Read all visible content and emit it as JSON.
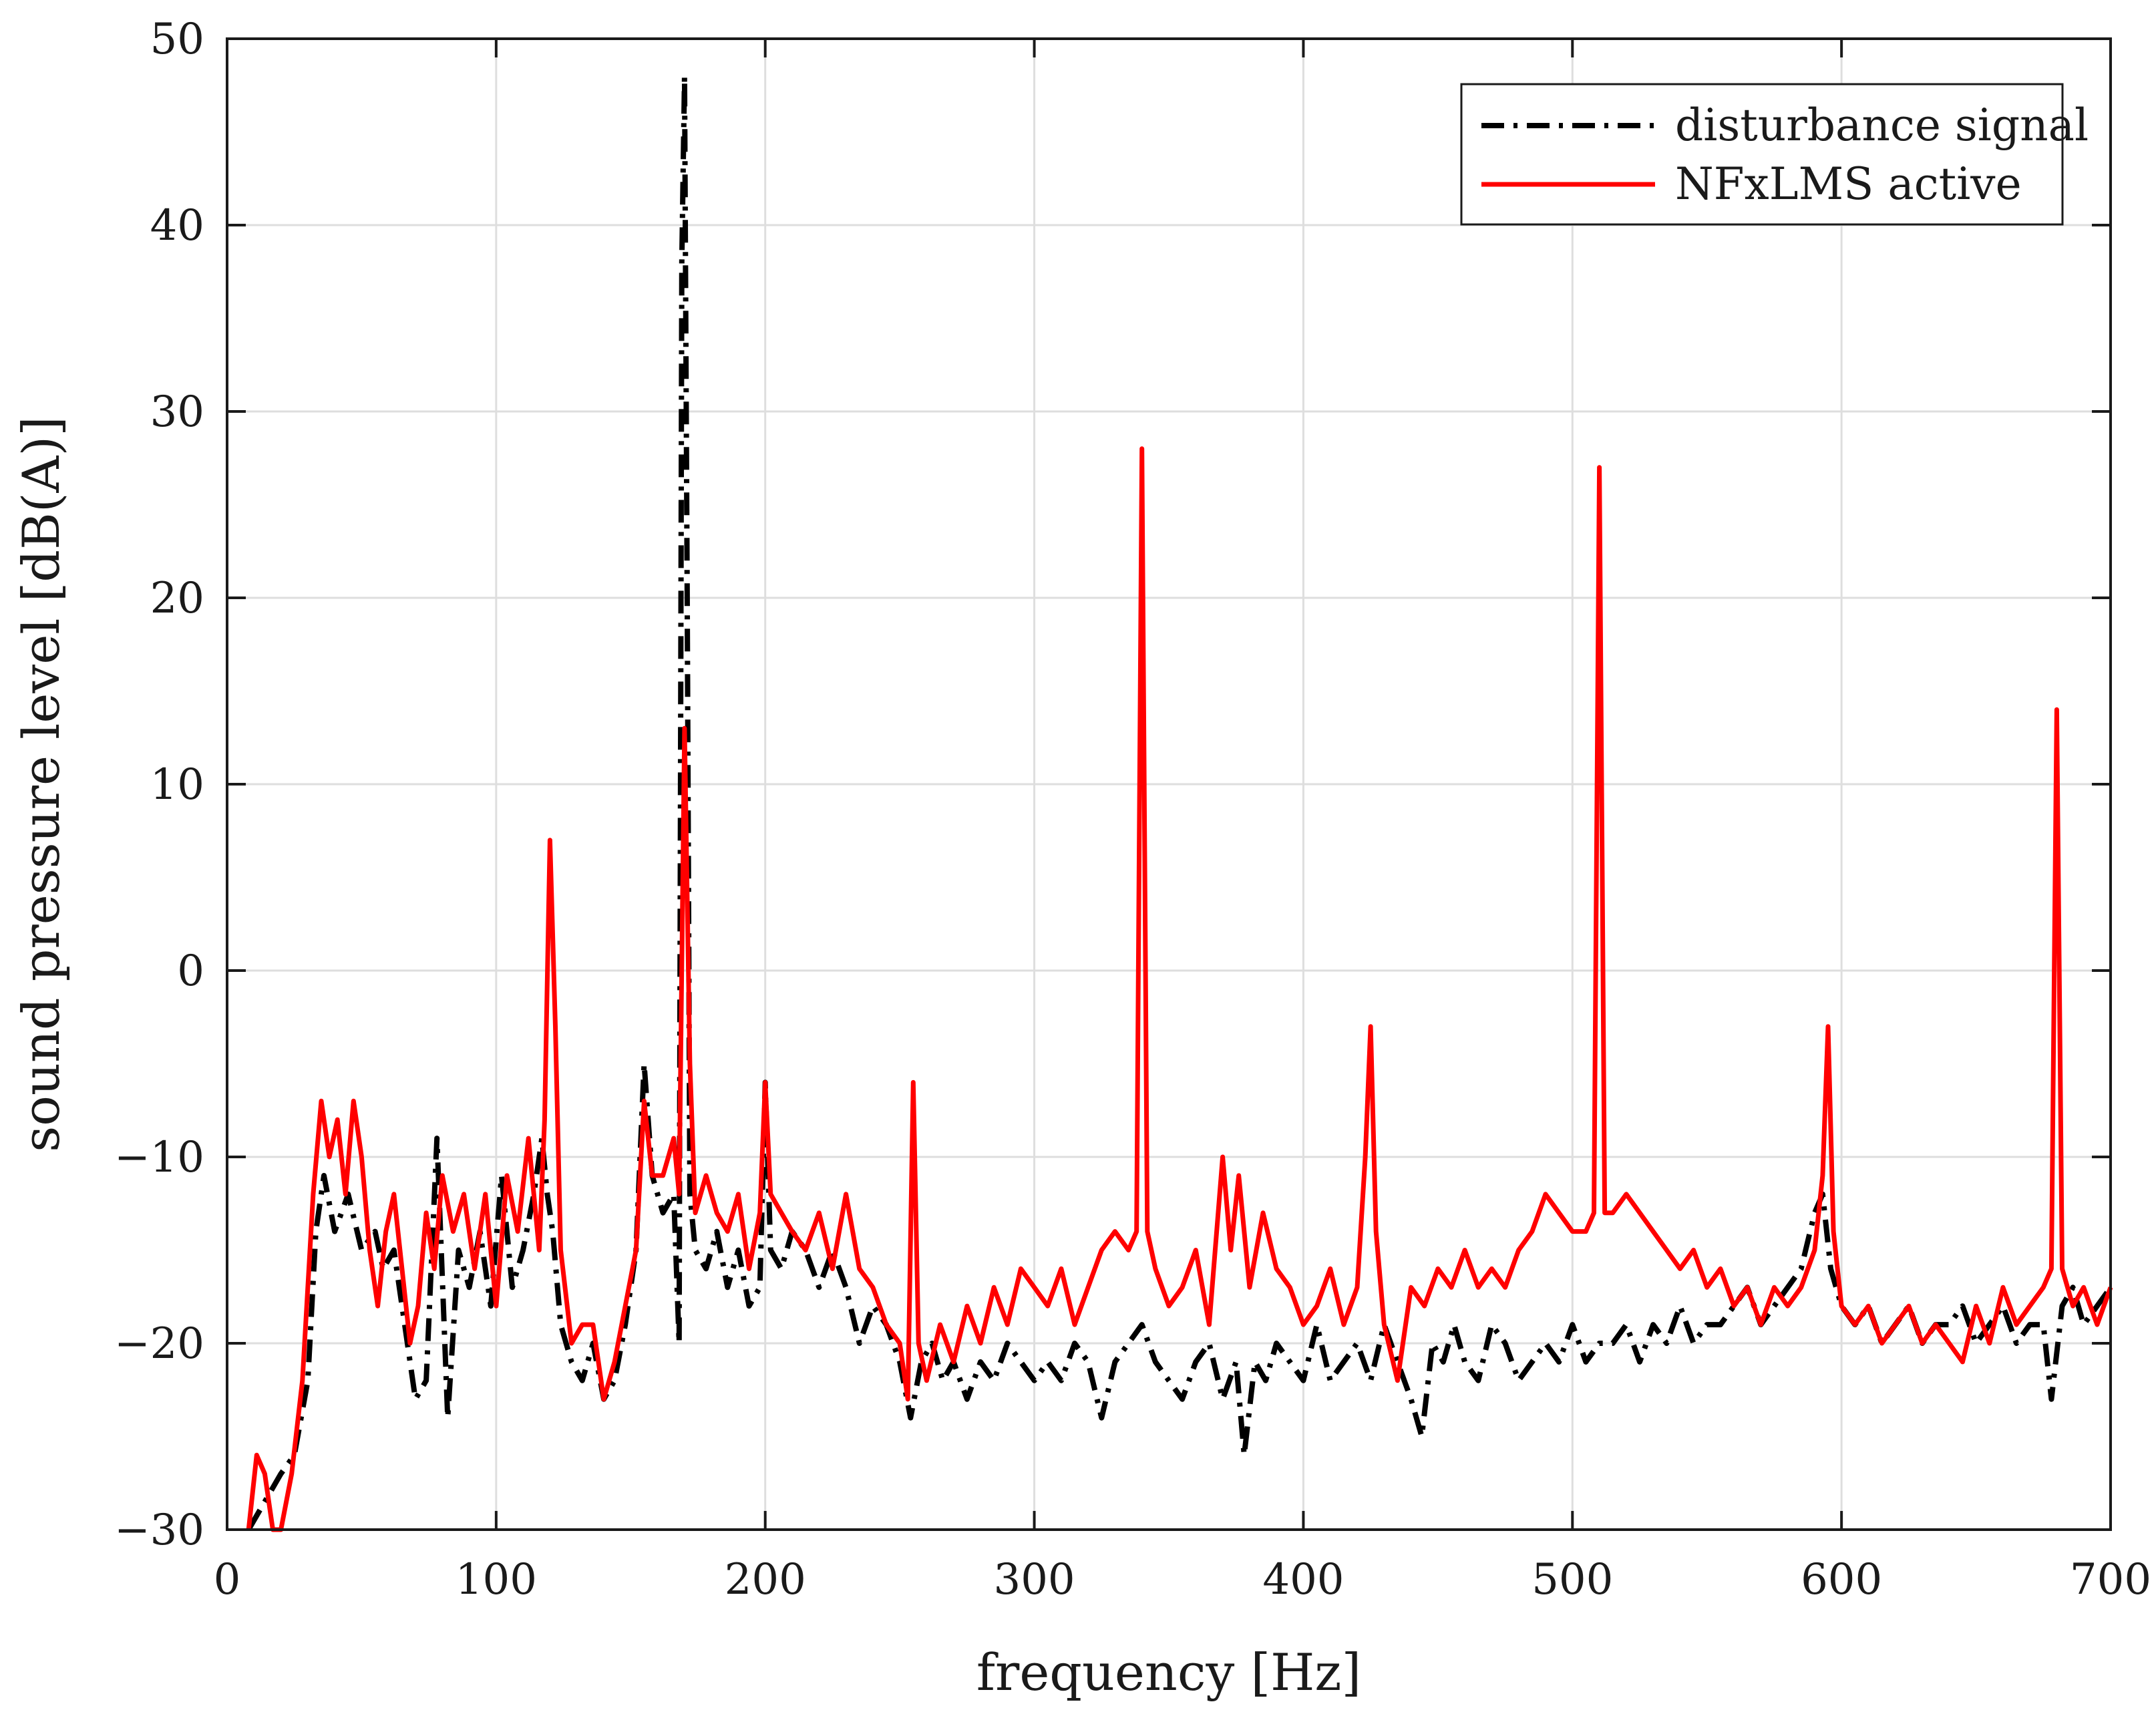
{
  "chart_data": {
    "type": "line",
    "title": "",
    "xlabel": "frequency [Hz]",
    "ylabel": "sound pressure level [dB(A)]",
    "xlim": [
      0,
      700
    ],
    "ylim": [
      -30,
      50
    ],
    "xticks": [
      0,
      100,
      200,
      300,
      400,
      500,
      600,
      700
    ],
    "yticks": [
      -30,
      -20,
      -10,
      0,
      10,
      20,
      30,
      40,
      50
    ],
    "xtick_labels": [
      "0",
      "100",
      "200",
      "300",
      "400",
      "500",
      "600",
      "700"
    ],
    "ytick_labels": [
      "−30",
      "−20",
      "−10",
      "0",
      "10",
      "20",
      "30",
      "40",
      "50"
    ],
    "grid": true,
    "legend_position": "top-right",
    "series": [
      {
        "name": "disturbance signal",
        "color": "#000000",
        "dash": "dash-dot",
        "x": [
          8,
          12,
          16,
          20,
          25,
          30,
          33,
          36,
          40,
          45,
          50,
          55,
          58,
          62,
          66,
          70,
          74,
          78,
          82,
          86,
          90,
          94,
          98,
          102,
          106,
          110,
          114,
          117,
          119,
          121,
          124,
          128,
          132,
          136,
          140,
          144,
          148,
          152,
          155,
          158,
          162,
          166,
          168,
          169,
          170,
          171,
          172,
          174,
          178,
          182,
          186,
          190,
          194,
          198,
          200,
          202,
          206,
          210,
          215,
          220,
          225,
          230,
          235,
          240,
          245,
          250,
          254,
          258,
          262,
          266,
          270,
          275,
          280,
          285,
          290,
          295,
          300,
          305,
          310,
          315,
          320,
          325,
          330,
          335,
          340,
          345,
          350,
          355,
          360,
          365,
          370,
          375,
          378,
          382,
          386,
          390,
          395,
          400,
          405,
          410,
          415,
          420,
          425,
          430,
          435,
          440,
          444,
          448,
          452,
          456,
          460,
          465,
          470,
          475,
          480,
          485,
          490,
          495,
          500,
          505,
          510,
          515,
          520,
          525,
          530,
          535,
          540,
          545,
          550,
          555,
          560,
          565,
          570,
          575,
          580,
          585,
          590,
          593,
          596,
          600,
          605,
          610,
          615,
          620,
          625,
          630,
          635,
          640,
          645,
          650,
          655,
          660,
          665,
          670,
          675,
          678,
          682,
          686,
          690,
          695,
          700
        ],
        "y": [
          -30,
          -29,
          -28,
          -27,
          -26,
          -22,
          -14,
          -11,
          -14,
          -12,
          -15,
          -14,
          -16,
          -15,
          -19,
          -23,
          -22,
          -9,
          -24,
          -15,
          -17,
          -14,
          -18,
          -11,
          -17,
          -15,
          -12,
          -9,
          -12,
          -14,
          -19,
          -21,
          -22,
          -20,
          -23,
          -22,
          -19,
          -15,
          -5,
          -11,
          -13,
          -12,
          -20,
          38,
          48,
          20,
          -12,
          -15,
          -16,
          -14,
          -17,
          -15,
          -18,
          -17,
          -6,
          -15,
          -16,
          -14,
          -15,
          -17,
          -15,
          -17,
          -20,
          -18,
          -19,
          -21,
          -24,
          -21,
          -20,
          -22,
          -21,
          -23,
          -21,
          -22,
          -20,
          -21,
          -22,
          -21,
          -22,
          -20,
          -21,
          -24,
          -21,
          -20,
          -19,
          -21,
          -22,
          -23,
          -21,
          -20,
          -23,
          -21,
          -26,
          -21,
          -22,
          -20,
          -21,
          -22,
          -19,
          -22,
          -21,
          -20,
          -22,
          -19,
          -21,
          -23,
          -25,
          -20,
          -21,
          -19,
          -21,
          -22,
          -19,
          -20,
          -22,
          -21,
          -20,
          -21,
          -19,
          -21,
          -20,
          -20,
          -19,
          -21,
          -19,
          -20,
          -18,
          -20,
          -19,
          -19,
          -18,
          -17,
          -19,
          -18,
          -17,
          -16,
          -13,
          -12,
          -16,
          -18,
          -19,
          -18,
          -20,
          -19,
          -18,
          -20,
          -19,
          -19,
          -18,
          -20,
          -19,
          -18,
          -20,
          -19,
          -19,
          -23,
          -18,
          -17,
          -19,
          -18,
          -17
        ]
      },
      {
        "name": "NFxLMS active",
        "color": "#ff0000",
        "dash": "solid",
        "x": [
          8,
          11,
          14,
          17,
          20,
          24,
          28,
          32,
          35,
          38,
          41,
          44,
          47,
          50,
          53,
          56,
          59,
          62,
          65,
          68,
          71,
          74,
          77,
          80,
          84,
          88,
          92,
          96,
          100,
          104,
          108,
          112,
          116,
          118,
          120,
          122,
          124,
          128,
          132,
          136,
          140,
          144,
          148,
          152,
          155,
          158,
          162,
          166,
          168,
          170,
          172,
          174,
          178,
          182,
          186,
          190,
          194,
          198,
          200,
          202,
          206,
          210,
          215,
          220,
          225,
          230,
          235,
          240,
          245,
          250,
          253,
          255,
          257,
          260,
          265,
          270,
          275,
          280,
          285,
          290,
          295,
          300,
          305,
          310,
          315,
          320,
          325,
          330,
          335,
          338,
          340,
          342,
          345,
          350,
          355,
          360,
          365,
          370,
          373,
          376,
          380,
          385,
          390,
          395,
          400,
          405,
          410,
          415,
          420,
          423,
          425,
          427,
          430,
          435,
          440,
          445,
          450,
          455,
          460,
          465,
          470,
          475,
          480,
          485,
          490,
          495,
          500,
          505,
          508,
          510,
          512,
          515,
          520,
          525,
          530,
          535,
          540,
          545,
          550,
          555,
          560,
          565,
          570,
          575,
          580,
          585,
          590,
          593,
          595,
          597,
          600,
          605,
          610,
          615,
          620,
          625,
          630,
          635,
          640,
          645,
          650,
          655,
          660,
          665,
          670,
          675,
          678,
          680,
          682,
          686,
          690,
          695,
          700
        ],
        "y": [
          -30,
          -26,
          -27,
          -30,
          -30,
          -27,
          -22,
          -12,
          -7,
          -10,
          -8,
          -12,
          -7,
          -10,
          -15,
          -18,
          -14,
          -12,
          -16,
          -20,
          -18,
          -13,
          -16,
          -11,
          -14,
          -12,
          -16,
          -12,
          -18,
          -11,
          -14,
          -9,
          -15,
          -8,
          7,
          -3,
          -15,
          -20,
          -19,
          -19,
          -23,
          -21,
          -18,
          -15,
          -7,
          -11,
          -11,
          -9,
          -12,
          13,
          -5,
          -13,
          -11,
          -13,
          -14,
          -12,
          -16,
          -13,
          -6,
          -12,
          -13,
          -14,
          -15,
          -13,
          -16,
          -12,
          -16,
          -17,
          -19,
          -20,
          -23,
          -6,
          -20,
          -22,
          -19,
          -21,
          -18,
          -20,
          -17,
          -19,
          -16,
          -17,
          -18,
          -16,
          -19,
          -17,
          -15,
          -14,
          -15,
          -14,
          28,
          -14,
          -16,
          -18,
          -17,
          -15,
          -19,
          -10,
          -15,
          -11,
          -17,
          -13,
          -16,
          -17,
          -19,
          -18,
          -16,
          -19,
          -17,
          -10,
          -3,
          -14,
          -19,
          -22,
          -17,
          -18,
          -16,
          -17,
          -15,
          -17,
          -16,
          -17,
          -15,
          -14,
          -12,
          -13,
          -14,
          -14,
          -13,
          27,
          -13,
          -13,
          -12,
          -13,
          -14,
          -15,
          -16,
          -15,
          -17,
          -16,
          -18,
          -17,
          -19,
          -17,
          -18,
          -17,
          -15,
          -11,
          -3,
          -14,
          -18,
          -19,
          -18,
          -20,
          -19,
          -18,
          -20,
          -19,
          -20,
          -21,
          -18,
          -20,
          -17,
          -19,
          -18,
          -17,
          -16,
          14,
          -16,
          -18,
          -17,
          -19,
          -17
        ]
      }
    ]
  }
}
